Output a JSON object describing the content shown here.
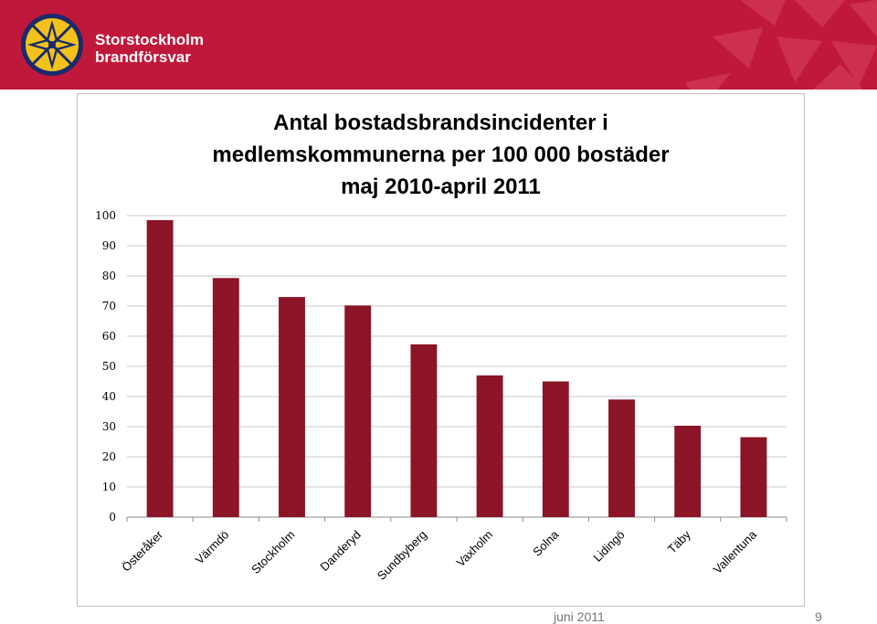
{
  "header": {
    "brand_line1": "Storstockholm",
    "brand_line2": "brandförsvar",
    "background_color": "#c0183a",
    "logo_icon": "star-compass-logo"
  },
  "chart_data": {
    "type": "bar",
    "title": "Antal bostadsbrandsincidenter  i\nmedlemskommunerna per 100 000 bostäder\nmaj 2010-april 2011",
    "categories": [
      "Österåker",
      "Värmdö",
      "Stockholm",
      "Danderyd",
      "Sundbyberg",
      "Vaxholm",
      "Solna",
      "Lidingö",
      "Täby",
      "Vallentuna"
    ],
    "values": [
      98.5,
      79.3,
      73.0,
      70.2,
      57.3,
      47.0,
      45.0,
      39.0,
      30.3,
      26.5
    ],
    "ylim": [
      0,
      100
    ],
    "yticks": [
      0,
      10,
      20,
      30,
      40,
      50,
      60,
      70,
      80,
      90,
      100
    ],
    "xlabel": "",
    "ylabel": "",
    "grid": true,
    "bar_color": "#8b1427"
  },
  "footer": {
    "date": "juni 2011",
    "page": "9"
  }
}
